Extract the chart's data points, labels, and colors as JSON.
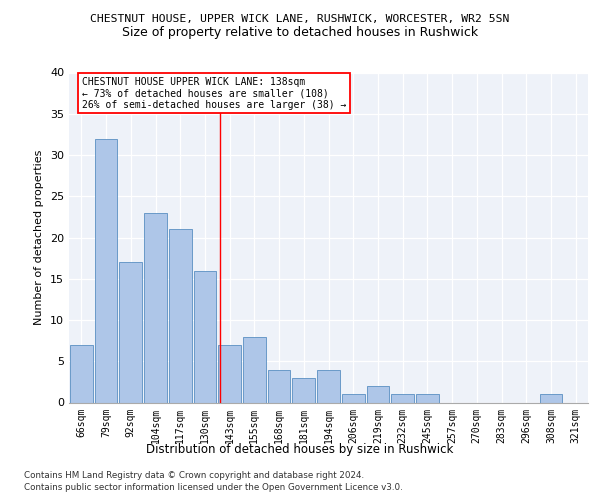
{
  "title1": "CHESTNUT HOUSE, UPPER WICK LANE, RUSHWICK, WORCESTER, WR2 5SN",
  "title2": "Size of property relative to detached houses in Rushwick",
  "xlabel": "Distribution of detached houses by size in Rushwick",
  "ylabel": "Number of detached properties",
  "categories": [
    "66sqm",
    "79sqm",
    "92sqm",
    "104sqm",
    "117sqm",
    "130sqm",
    "143sqm",
    "155sqm",
    "168sqm",
    "181sqm",
    "194sqm",
    "206sqm",
    "219sqm",
    "232sqm",
    "245sqm",
    "257sqm",
    "270sqm",
    "283sqm",
    "296sqm",
    "308sqm",
    "321sqm"
  ],
  "values": [
    7,
    32,
    17,
    23,
    21,
    16,
    7,
    8,
    4,
    3,
    4,
    1,
    2,
    1,
    1,
    0,
    0,
    0,
    0,
    1,
    0
  ],
  "bar_color": "#aec6e8",
  "bar_edge_color": "#5a8fc2",
  "reference_line_label": "CHESTNUT HOUSE UPPER WICK LANE: 138sqm",
  "annotation_line1": "← 73% of detached houses are smaller (108)",
  "annotation_line2": "26% of semi-detached houses are larger (38) →",
  "ylim": [
    0,
    40
  ],
  "yticks": [
    0,
    5,
    10,
    15,
    20,
    25,
    30,
    35,
    40
  ],
  "footnote1": "Contains HM Land Registry data © Crown copyright and database right 2024.",
  "footnote2": "Contains public sector information licensed under the Open Government Licence v3.0.",
  "background_color": "#eef2f9",
  "grid_color": "#ffffff",
  "fig_background": "#ffffff"
}
